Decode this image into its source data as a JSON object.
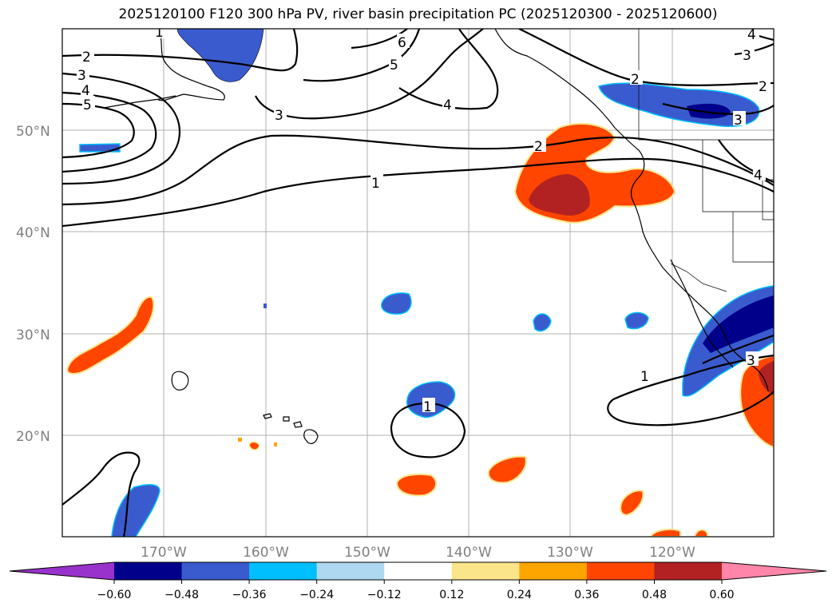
{
  "title": "2025120100 F120 300 hPa PV, river basin precipitation PC (2025120300 - 2025120600)",
  "map": {
    "lon_range": [
      -180,
      -110
    ],
    "lat_range": [
      10,
      60
    ],
    "lat_ticks": [
      {
        "value": 20,
        "label": "20°N"
      },
      {
        "value": 30,
        "label": "30°N"
      },
      {
        "value": 40,
        "label": "40°N"
      },
      {
        "value": 50,
        "label": "50°N"
      }
    ],
    "lon_ticks": [
      {
        "value": -170,
        "label": "170°W"
      },
      {
        "value": -160,
        "label": "160°W"
      },
      {
        "value": -150,
        "label": "150°W"
      },
      {
        "value": -140,
        "label": "140°W"
      },
      {
        "value": -130,
        "label": "130°W"
      },
      {
        "value": -120,
        "label": "120°W"
      }
    ],
    "contour_labels": [
      "1",
      "2",
      "3",
      "4",
      "5",
      "6"
    ]
  },
  "colorbar": {
    "colors": [
      "#9932cc",
      "#00008b",
      "#3a5bcd",
      "#00bfff",
      "#add8f0",
      "#ffffff",
      "#fbe58a",
      "#ffa500",
      "#ff4500",
      "#b22222",
      "#ff86aa"
    ],
    "levels": [
      "−0.60",
      "−0.48",
      "−0.36",
      "−0.24",
      "−0.12",
      "0.12",
      "0.24",
      "0.36",
      "0.48",
      "0.60"
    ]
  }
}
